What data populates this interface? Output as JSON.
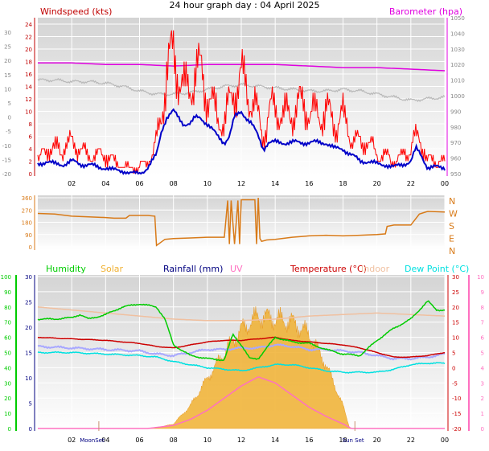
{
  "title": "24 hour graph day : 04 April 2025",
  "colors": {
    "windspeed": "#c00000",
    "gust_line": "#ff0000",
    "avg_line": "#0000c8",
    "barometer": "#e000e0",
    "barometer_shadow": "#b8b8b8",
    "direction": "#d87a18",
    "humidity": "#00cc00",
    "solar": "#f0b030",
    "rainfall": "#000080",
    "uv": "#ff70c0",
    "temperature": "#cc0000",
    "indoor": "#f0c0a0",
    "dewpoint": "#00e0e0",
    "feels_like": "#a8a8ff"
  },
  "chart_data": [
    {
      "type": "line",
      "labels": {
        "left": "Windspeed (kts)",
        "right": "Barometer (hpa)"
      },
      "x_ticks": [
        "02",
        "04",
        "06",
        "08",
        "10",
        "12",
        "14",
        "16",
        "18",
        "20",
        "22",
        "00"
      ],
      "y_left_ticks": [
        "24",
        "22",
        "20",
        "18",
        "16",
        "14",
        "12",
        "10",
        "8",
        "6",
        "4",
        "2",
        "0"
      ],
      "y_far_left_ticks": [
        "30",
        "25",
        "20",
        "15",
        "10",
        "5",
        "0",
        "-5",
        "-10",
        "-15",
        "-20"
      ],
      "y_right_ticks": [
        "1050",
        "1040",
        "1030",
        "1020",
        "1010",
        "1000",
        "990",
        "980",
        "970",
        "960",
        "950"
      ],
      "ylim_left": [
        0,
        24
      ],
      "ylim_right": [
        950,
        1050
      ],
      "grid": true,
      "series": [
        {
          "name": "Windspeed (kts)",
          "role": "gust",
          "hours": [
            0.0,
            0.5,
            1.0,
            1.5,
            2.0,
            2.5,
            3.0,
            3.5,
            4.0,
            4.5,
            5.0,
            5.5,
            6.0,
            6.5,
            7.0,
            7.3,
            7.6,
            8.0,
            8.3,
            8.6,
            9.0,
            9.3,
            9.6,
            10.0,
            10.3,
            10.6,
            11.0,
            11.3,
            11.6,
            12.0,
            12.3,
            12.6,
            13.0,
            13.3,
            13.6,
            14.0,
            14.5,
            15.0,
            15.5,
            16.0,
            16.5,
            17.0,
            17.5,
            18.0,
            18.5,
            19.0,
            19.5,
            20.0,
            20.5,
            21.0,
            21.5,
            22.0,
            22.3,
            22.6,
            23.0
          ],
          "values": [
            2,
            4,
            4,
            4,
            5,
            4,
            3,
            3,
            3,
            2,
            1,
            1,
            1,
            2,
            5,
            10,
            16,
            19,
            17,
            13,
            14,
            17,
            16,
            13,
            11,
            9,
            8,
            11,
            14,
            15,
            14,
            12,
            9,
            6,
            9,
            11,
            9,
            10,
            11,
            10,
            9,
            10,
            8,
            9,
            6,
            5,
            5,
            3,
            3,
            2,
            3,
            4,
            6,
            5,
            2
          ]
        },
        {
          "name": "Average windspeed",
          "role": "average",
          "hours": [
            0.0,
            0.5,
            1.0,
            1.5,
            2.0,
            2.5,
            3.0,
            3.5,
            4.0,
            4.5,
            5.0,
            5.5,
            6.0,
            6.5,
            7.0,
            7.3,
            7.6,
            8.0,
            8.3,
            8.6,
            9.0,
            9.3,
            9.6,
            10.0,
            10.3,
            10.6,
            11.0,
            11.3,
            11.6,
            12.0,
            12.3,
            12.6,
            13.0,
            13.3,
            13.6,
            14.0,
            14.5,
            15.0,
            15.5,
            16.0,
            16.5,
            17.0,
            17.5,
            18.0,
            18.5,
            19.0,
            19.5,
            20.0,
            20.5,
            21.0,
            21.5,
            22.0,
            22.3,
            22.6,
            23.0
          ],
          "values": [
            1.5,
            2,
            1.5,
            1.5,
            2,
            1.5,
            1.5,
            1,
            1,
            0.5,
            0.5,
            0,
            0,
            1,
            3,
            7,
            9,
            10,
            9,
            8,
            8,
            9,
            9,
            8,
            7,
            6,
            5,
            6,
            9,
            10,
            9,
            8,
            6,
            4,
            5,
            5,
            5,
            5,
            5,
            5,
            5,
            5,
            4,
            4,
            3,
            2,
            2,
            1.5,
            1.5,
            1,
            1.5,
            2,
            4,
            3,
            1
          ]
        },
        {
          "name": "Barometer (hpa)",
          "role": "barometer",
          "hours": [
            0,
            2,
            4,
            6,
            8,
            10,
            12,
            14,
            16,
            18,
            20,
            22,
            24
          ],
          "values": [
            1021,
            1021,
            1020,
            1020,
            1019,
            1020,
            1020,
            1020,
            1019,
            1018,
            1018,
            1017,
            1016
          ]
        },
        {
          "name": "Barometer shadow",
          "role": "barometer-shadow",
          "hours": [
            0,
            1,
            2,
            3,
            4,
            5,
            6,
            7,
            8,
            9,
            10,
            11,
            12,
            13,
            14,
            15,
            16,
            17,
            18,
            19,
            20,
            21,
            22,
            23,
            24
          ],
          "values": [
            1010,
            1010,
            1009,
            1009,
            1008,
            1006,
            1003,
            1001,
            1001,
            1002,
            1004,
            1006,
            1007,
            1006,
            1005,
            1004,
            1003,
            1003,
            1004,
            1003,
            1001,
            999,
            997,
            998,
            999
          ]
        }
      ]
    },
    {
      "type": "line",
      "labels": {
        "right": [
          "N",
          "W",
          "S",
          "E",
          "N"
        ]
      },
      "y_left_ticks": [
        "360",
        "270",
        "180",
        "90",
        "0"
      ],
      "ylim": [
        0,
        360
      ],
      "grid": true,
      "series": [
        {
          "name": "Wind direction",
          "role": "direction",
          "hours": [
            0,
            1,
            2,
            3,
            4,
            4.5,
            5.2,
            5.4,
            6,
            6.5,
            6.9,
            7.0,
            7.5,
            8,
            9,
            10,
            11,
            11.2,
            11.3,
            11.4,
            11.6,
            11.8,
            11.9,
            12.0,
            12.5,
            12.8,
            12.9,
            13.0,
            13.1,
            13.2,
            13.5,
            14,
            15,
            16,
            17,
            18,
            19,
            20,
            20.5,
            20.6,
            21,
            22,
            22.5,
            23,
            24
          ],
          "values": [
            245,
            240,
            225,
            220,
            215,
            210,
            210,
            230,
            230,
            230,
            225,
            10,
            55,
            60,
            65,
            70,
            70,
            340,
            20,
            340,
            20,
            340,
            20,
            345,
            345,
            345,
            20,
            360,
            60,
            40,
            50,
            55,
            70,
            80,
            85,
            80,
            85,
            90,
            95,
            150,
            160,
            160,
            240,
            260,
            255
          ]
        }
      ]
    },
    {
      "type": "line",
      "labels": {
        "humidity": "Humidity",
        "solar": "Solar",
        "rainfall": "Rainfall (mm)",
        "uv": "UV",
        "temperature": "Temperature (°C)",
        "indoor": "Indoor",
        "dewpoint": "Dew Point (°C)"
      },
      "x_ticks": [
        "02",
        "04",
        "06",
        "08",
        "10",
        "12",
        "14",
        "16",
        "18",
        "20",
        "22",
        "00"
      ],
      "x_events": [
        "MoonSet",
        "Sun Set"
      ],
      "y_humidity_ticks": [
        "100",
        "90",
        "80",
        "70",
        "60",
        "50",
        "40",
        "30",
        "20",
        "10",
        "0"
      ],
      "y_rain_ticks": [
        "30",
        "25",
        "20",
        "15",
        "10",
        "5",
        "0"
      ],
      "y_temp_ticks": [
        "30",
        "25",
        "20",
        "15",
        "10",
        "5",
        "0",
        "-5",
        "-10",
        "-15",
        "-20"
      ],
      "y_uv_ticks": [
        "10",
        "9",
        "8",
        "7",
        "6",
        "5",
        "4",
        "3",
        "2",
        "1",
        "0"
      ],
      "ylim_humidity": [
        0,
        100
      ],
      "ylim_temperature": [
        -20,
        30
      ],
      "ylim_uv": [
        0,
        10
      ],
      "grid": true,
      "series": [
        {
          "name": "Humidity",
          "hours": [
            0,
            1,
            2,
            2.5,
            3,
            4,
            5,
            6,
            7,
            7.5,
            8,
            9,
            10,
            11,
            11.5,
            12,
            12.5,
            13,
            14,
            15,
            16,
            17,
            18,
            19,
            20,
            21,
            22,
            23,
            23.5,
            24
          ],
          "values": [
            72,
            72,
            73,
            75,
            72,
            75,
            80,
            82,
            80,
            72,
            55,
            48,
            46,
            45,
            62,
            55,
            46,
            46,
            60,
            57,
            56,
            52,
            49,
            48,
            58,
            66,
            72,
            84,
            78,
            78
          ]
        },
        {
          "name": "Solar",
          "hours": [
            0,
            6,
            7,
            8,
            9,
            10,
            11,
            12,
            13,
            14,
            15,
            16,
            17,
            18,
            18.4,
            24
          ],
          "values": [
            0,
            0,
            3,
            30,
            150,
            330,
            500,
            650,
            740,
            720,
            700,
            620,
            420,
            150,
            0,
            0
          ]
        },
        {
          "name": "UV",
          "hours": [
            0,
            6.5,
            8,
            9,
            10,
            11,
            12,
            13,
            14,
            15,
            16,
            17,
            18,
            18.5,
            24
          ],
          "values": [
            0,
            0,
            0.2,
            0.6,
            1.2,
            2,
            2.8,
            3.4,
            3,
            2.2,
            1.4,
            0.8,
            0.3,
            0,
            0
          ]
        },
        {
          "name": "Temperature (°C)",
          "hours": [
            0,
            2,
            4,
            6,
            7,
            8,
            9,
            10,
            11,
            12,
            13,
            14,
            15,
            16,
            17,
            18,
            19,
            20,
            21,
            22,
            23,
            24
          ],
          "values": [
            10,
            9.5,
            9,
            8,
            7,
            6.5,
            7.5,
            8.5,
            9,
            9,
            9.5,
            10,
            9,
            8.5,
            8,
            7.5,
            6.5,
            5,
            3.5,
            3.5,
            4,
            5
          ]
        },
        {
          "name": "Indoor",
          "hours": [
            0,
            2,
            4,
            6,
            8,
            10,
            12,
            14,
            16,
            18,
            20,
            22,
            24
          ],
          "values": [
            20,
            19,
            18,
            17,
            16,
            15.5,
            15.5,
            16,
            17,
            17.5,
            18,
            17.5,
            17
          ]
        },
        {
          "name": "Dew Point (°C)",
          "hours": [
            0,
            2,
            4,
            6,
            7,
            8,
            9,
            10,
            11,
            12,
            13,
            14,
            15,
            16,
            17,
            18,
            19,
            20,
            21,
            22,
            23,
            24
          ],
          "values": [
            5,
            5,
            4.5,
            4,
            3.5,
            2,
            1,
            0,
            -0.5,
            -1,
            0,
            1,
            1,
            0,
            -1,
            -1.5,
            -1.5,
            -1.5,
            -0.5,
            1,
            1.5,
            1.5
          ]
        },
        {
          "name": "Feels like",
          "hours": [
            0,
            2,
            4,
            6,
            7,
            8,
            9,
            10,
            11,
            12,
            13,
            14,
            15,
            16,
            17,
            18,
            19,
            20,
            21,
            22,
            23,
            24
          ],
          "values": [
            7,
            6.5,
            6,
            5.5,
            4.5,
            4,
            5,
            6,
            6,
            6.5,
            6.5,
            7.5,
            7,
            6,
            6,
            5.5,
            5,
            4,
            3,
            3,
            3.5,
            4.5
          ]
        }
      ]
    }
  ]
}
